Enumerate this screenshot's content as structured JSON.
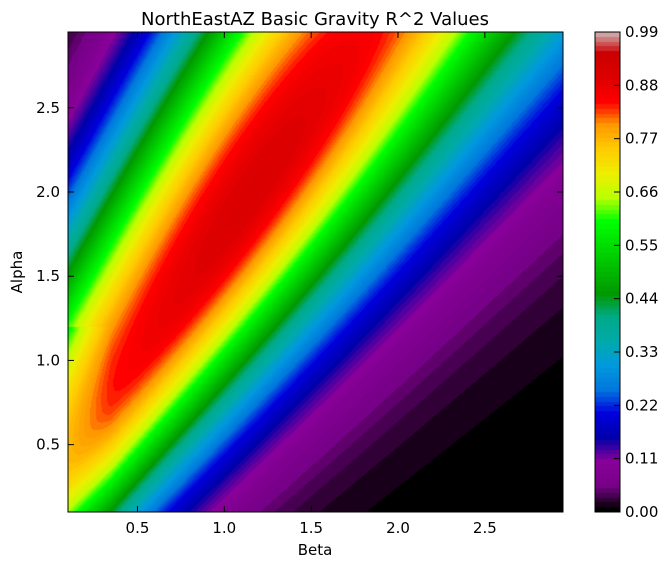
{
  "chart_data": {
    "type": "heatmap",
    "subtype": "filled-contour",
    "title": "NorthEastAZ Basic Gravity R^2 Values",
    "xlabel": "Beta",
    "ylabel": "Alpha",
    "xlim": [
      0.1,
      2.95
    ],
    "ylim": [
      0.1,
      2.95
    ],
    "x_ticks": [
      0.5,
      1.0,
      1.5,
      2.0,
      2.5
    ],
    "x_tick_labels": [
      "0.5",
      "1.0",
      "1.5",
      "2.0",
      "2.5"
    ],
    "y_ticks": [
      0.5,
      1.0,
      1.5,
      2.0,
      2.5
    ],
    "y_tick_labels": [
      "0.5",
      "1.0",
      "1.5",
      "2.0",
      "2.5"
    ],
    "colormap": "nipy_spectral",
    "colorbar": {
      "range": [
        0.0,
        0.99
      ],
      "ticks": [
        0.0,
        0.11,
        0.22,
        0.33,
        0.44,
        0.55,
        0.66,
        0.77,
        0.88,
        0.99
      ],
      "tick_labels": [
        "0.00",
        "0.11",
        "0.22",
        "0.33",
        "0.44",
        "0.55",
        "0.66",
        "0.77",
        "0.88",
        "0.99"
      ],
      "placement": "right"
    },
    "grid": false,
    "peak": {
      "beta": 0.95,
      "alpha": 2.35,
      "value": 0.91
    }
  }
}
